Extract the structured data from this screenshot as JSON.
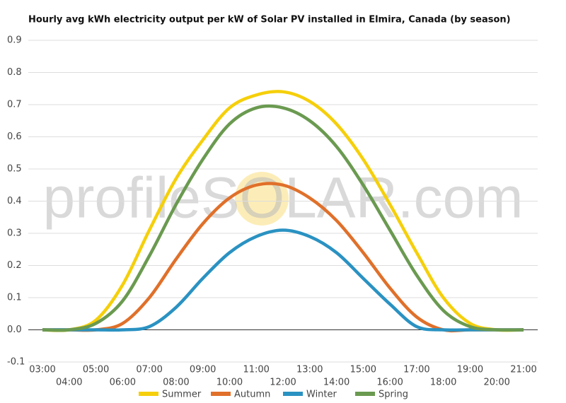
{
  "chart_data": {
    "type": "line",
    "title": "Hourly avg kWh electricity output per kW of Solar PV installed in Elmira, Canada (by season)",
    "watermark": "profileSOLAR.com",
    "categories": [
      "03:00",
      "04:00",
      "05:00",
      "06:00",
      "07:00",
      "08:00",
      "09:00",
      "10:00",
      "11:00",
      "12:00",
      "13:00",
      "14:00",
      "15:00",
      "16:00",
      "17:00",
      "18:00",
      "19:00",
      "20:00",
      "21:00"
    ],
    "series": [
      {
        "name": "Summer",
        "color": "#f5cf0a",
        "values": [
          0,
          0,
          0.03,
          0.14,
          0.31,
          0.47,
          0.59,
          0.69,
          0.73,
          0.74,
          0.71,
          0.64,
          0.53,
          0.39,
          0.24,
          0.1,
          0.02,
          0,
          0
        ]
      },
      {
        "name": "Autumn",
        "color": "#e0702a",
        "values": [
          0,
          0,
          0,
          0.02,
          0.1,
          0.22,
          0.33,
          0.41,
          0.45,
          0.45,
          0.41,
          0.34,
          0.24,
          0.13,
          0.04,
          0,
          0,
          0,
          0
        ]
      },
      {
        "name": "Winter",
        "color": "#2a92c2",
        "values": [
          0,
          0,
          0,
          0,
          0.01,
          0.07,
          0.16,
          0.24,
          0.29,
          0.31,
          0.29,
          0.24,
          0.16,
          0.08,
          0.01,
          0,
          0,
          0,
          0
        ]
      },
      {
        "name": "Spring",
        "color": "#6a9a50",
        "values": [
          0,
          0,
          0.02,
          0.09,
          0.23,
          0.39,
          0.53,
          0.64,
          0.69,
          0.69,
          0.65,
          0.57,
          0.45,
          0.31,
          0.17,
          0.06,
          0.01,
          0,
          0
        ]
      }
    ],
    "ylim": [
      -0.1,
      0.9
    ],
    "yticks": [
      -0.1,
      {
        "value": 0,
        "label": "0.0"
      },
      0.1,
      0.2,
      0.3,
      0.4,
      0.5,
      0.6,
      0.7,
      0.8,
      0.9
    ],
    "grid": true,
    "legend": "bottom"
  }
}
